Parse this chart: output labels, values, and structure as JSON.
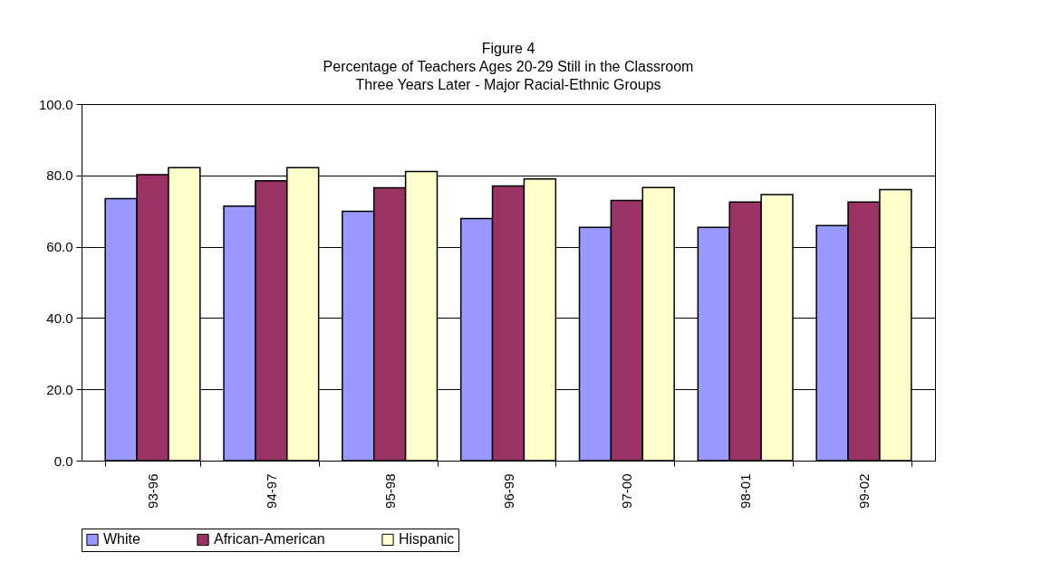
{
  "chart_data": {
    "type": "bar",
    "title": "Figure 4",
    "subtitle": "Percentage of Teachers Ages 20-29 Still in the Classroom\nThree Years Later - Major Racial-Ethnic Groups",
    "categories": [
      "93-96",
      "94-97",
      "95-98",
      "96-99",
      "97-00",
      "98-01",
      "99-02"
    ],
    "series": [
      {
        "name": "White",
        "color": "#9999ff",
        "values": [
          73.5,
          71.4,
          69.9,
          67.9,
          65.4,
          65.4,
          65.9
        ]
      },
      {
        "name": "African-American",
        "color": "#993366",
        "values": [
          80.2,
          78.5,
          76.5,
          77.0,
          73.0,
          72.5,
          72.5
        ]
      },
      {
        "name": "Hispanic",
        "color": "#ffffcc",
        "values": [
          82.2,
          82.2,
          81.1,
          79.0,
          76.6,
          74.6,
          76.0
        ]
      }
    ],
    "ylim": [
      0,
      100
    ],
    "yticks": [
      {
        "value": 0,
        "label": "0.0"
      },
      {
        "value": 20,
        "label": "20.0"
      },
      {
        "value": 40,
        "label": "40.0"
      },
      {
        "value": 60,
        "label": "60.0"
      },
      {
        "value": 80,
        "label": "80.0"
      },
      {
        "value": 100,
        "label": "100.0"
      }
    ],
    "grid": "y",
    "legend": "bottom"
  }
}
